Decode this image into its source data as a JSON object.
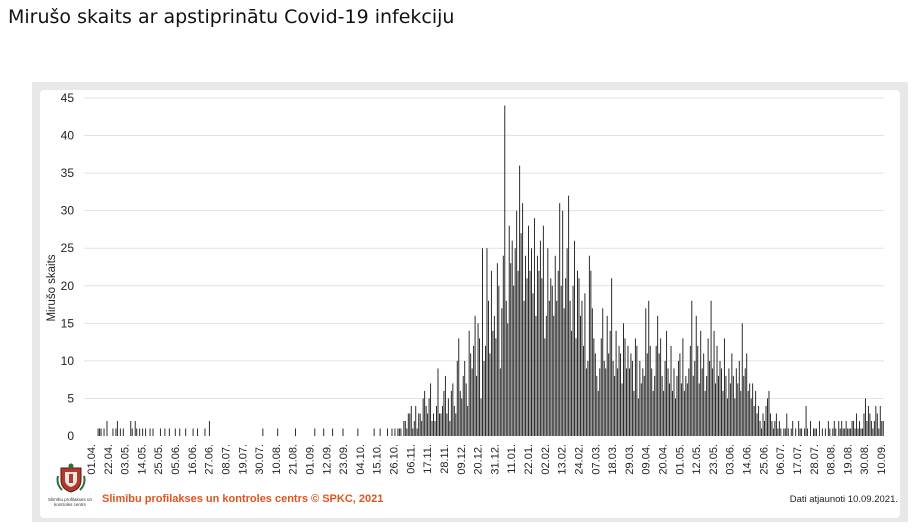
{
  "page": {
    "title": "Mirušo skaits ar apstiprinātu Covid-19 infekciju",
    "credit": "Slimību profilakses un kontroles centrs © SPKC, 2021",
    "updated": "Dati atjaunoti 10.09.2021.",
    "logo_caption": "Slimību profilakses un kontroles centrs"
  },
  "chart_data": {
    "type": "bar",
    "title": "Mirušo skaits ar apstiprinātu Covid-19 infekciju",
    "xlabel": "",
    "ylabel": "Mirušo skaits",
    "ylim": [
      0,
      45
    ],
    "yticks": [
      0,
      5,
      10,
      15,
      20,
      25,
      30,
      35,
      40,
      45
    ],
    "grid": true,
    "bar_color": "#222222",
    "x_start": "2020-03-22",
    "x_end": "2021-09-10",
    "x_tick_labels": [
      "01.04.",
      "22.04.",
      "03.05.",
      "14.05.",
      "25.05.",
      "05.06.",
      "16.06.",
      "27.06.",
      "08.07.",
      "19.07.",
      "30.07.",
      "10.08.",
      "21.08.",
      "01.09.",
      "12.09.",
      "23.09.",
      "04.10.",
      "15.10.",
      "26.10.",
      "06.11.",
      "17.11.",
      "28.11.",
      "09.12.",
      "20.12.",
      "31.12.",
      "11.01.",
      "22.01.",
      "02.02.",
      "13.02.",
      "24.02.",
      "07.03.",
      "18.03.",
      "29.03.",
      "09.04.",
      "20.04.",
      "01.05.",
      "12.05.",
      "23.05.",
      "03.06.",
      "14.06.",
      "25.06.",
      "06.07.",
      "17.07.",
      "28.07.",
      "08.08.",
      "19.08.",
      "30.08.",
      "10.09."
    ],
    "monthly_values": [
      {
        "month": "2020-03",
        "values": [
          0,
          0,
          0,
          0,
          0,
          0,
          0,
          0,
          0,
          1
        ]
      },
      {
        "month": "2020-04",
        "values": [
          1,
          1,
          0,
          1,
          0,
          2,
          0,
          0,
          0,
          1,
          0,
          1,
          2,
          0,
          1,
          0,
          1,
          0,
          0,
          0,
          0,
          2,
          1,
          0,
          2,
          1,
          0,
          1,
          0,
          1
        ]
      },
      {
        "month": "2020-05",
        "values": [
          0,
          1,
          0,
          0,
          1,
          0,
          1,
          0,
          0,
          0,
          0,
          1,
          0,
          0,
          1,
          0,
          0,
          1,
          0,
          0,
          0,
          1,
          0,
          0,
          1,
          0,
          0,
          0,
          1,
          0,
          0
        ]
      },
      {
        "month": "2020-06",
        "values": [
          0,
          0,
          1,
          0,
          0,
          1,
          0,
          0,
          0,
          0,
          1,
          0,
          0,
          2,
          0,
          0,
          0,
          0,
          0,
          0,
          0,
          0,
          0,
          0,
          0,
          0,
          0,
          0,
          0,
          0
        ]
      },
      {
        "month": "2020-07",
        "values": [
          0,
          0,
          0,
          0,
          0,
          0,
          0,
          0,
          0,
          0,
          0,
          0,
          0,
          0,
          0,
          0,
          0,
          0,
          0,
          1,
          0,
          0,
          0,
          0,
          0,
          0,
          0,
          0,
          0,
          1,
          0
        ]
      },
      {
        "month": "2020-08",
        "values": [
          0,
          0,
          0,
          0,
          0,
          0,
          0,
          0,
          0,
          0,
          1,
          0,
          0,
          0,
          0,
          0,
          0,
          0,
          0,
          0,
          0,
          0,
          0,
          1,
          0,
          0,
          0,
          0,
          0,
          1,
          0
        ]
      },
      {
        "month": "2020-09",
        "values": [
          0,
          0,
          0,
          0,
          1,
          0,
          0,
          0,
          0,
          0,
          0,
          1,
          0,
          0,
          0,
          0,
          0,
          0,
          0,
          0,
          0,
          1,
          0,
          0,
          0,
          0,
          0,
          0,
          0,
          0
        ]
      },
      {
        "month": "2020-10",
        "values": [
          0,
          0,
          1,
          0,
          0,
          0,
          1,
          0,
          0,
          0,
          0,
          1,
          0,
          0,
          1,
          0,
          1,
          0,
          1,
          1,
          1,
          0,
          2,
          2,
          1,
          3,
          3,
          4,
          1,
          2,
          4
        ]
      },
      {
        "month": "2020-11",
        "values": [
          1,
          3,
          3,
          2,
          5,
          6,
          4,
          3,
          5,
          7,
          2,
          3,
          2,
          4,
          9,
          3,
          3,
          4,
          6,
          8,
          3,
          5,
          2,
          6,
          7,
          4,
          3,
          10,
          13,
          6
        ]
      },
      {
        "month": "2020-12",
        "values": [
          5,
          8,
          10,
          7,
          4,
          14,
          11,
          9,
          12,
          16,
          8,
          15,
          13,
          5,
          25,
          10,
          12,
          25,
          18,
          11,
          22,
          14,
          16,
          13,
          23,
          20,
          9,
          17,
          24,
          44,
          18
        ]
      },
      {
        "month": "2021-01",
        "values": [
          15,
          28,
          23,
          26,
          20,
          25,
          30,
          22,
          36,
          27,
          31,
          18,
          24,
          21,
          28,
          22,
          25,
          19,
          29,
          16,
          24,
          22,
          26,
          21,
          28,
          13,
          16,
          25,
          18,
          21,
          20
        ]
      },
      {
        "month": "2021-02",
        "values": [
          16,
          24,
          18,
          22,
          31,
          20,
          30,
          17,
          21,
          25,
          32,
          18,
          14,
          20,
          26,
          13,
          22,
          21,
          16,
          18,
          12,
          19,
          9,
          10,
          24,
          22,
          17,
          13,
          11
        ]
      },
      {
        "month": "2021-03",
        "values": [
          8,
          6,
          9,
          13,
          17,
          10,
          9,
          16,
          11,
          14,
          21,
          10,
          8,
          14,
          9,
          12,
          11,
          7,
          15,
          13,
          9,
          12,
          9,
          11,
          10,
          6,
          13,
          12,
          5,
          10,
          7
        ]
      },
      {
        "month": "2021-04",
        "values": [
          9,
          8,
          17,
          11,
          18,
          12,
          9,
          6,
          8,
          12,
          16,
          11,
          13,
          8,
          6,
          10,
          14,
          9,
          7,
          12,
          6,
          9,
          5,
          8,
          10,
          11,
          7,
          13,
          6,
          8
        ]
      },
      {
        "month": "2021-05",
        "values": [
          7,
          9,
          12,
          18,
          8,
          10,
          16,
          12,
          7,
          14,
          9,
          11,
          6,
          8,
          13,
          10,
          18,
          9,
          14,
          7,
          12,
          8,
          10,
          9,
          6,
          13,
          8,
          5,
          9,
          7,
          11
        ]
      },
      {
        "month": "2021-06",
        "values": [
          8,
          5,
          9,
          7,
          10,
          6,
          15,
          8,
          9,
          11,
          6,
          7,
          5,
          7,
          4,
          6,
          3,
          4,
          2,
          1,
          3,
          2,
          4,
          5,
          6,
          3,
          2,
          1,
          2,
          3
        ]
      },
      {
        "month": "2021-07",
        "values": [
          1,
          2,
          1,
          0,
          1,
          1,
          3,
          1,
          0,
          1,
          2,
          0,
          1,
          0,
          2,
          1,
          1,
          0,
          1,
          4,
          1,
          0,
          2,
          0,
          1,
          1,
          1,
          0,
          2,
          0,
          1
        ]
      },
      {
        "month": "2021-08",
        "values": [
          0,
          1,
          0,
          2,
          1,
          0,
          1,
          2,
          1,
          0,
          2,
          1,
          2,
          1,
          1,
          2,
          1,
          1,
          1,
          2,
          2,
          1,
          3,
          1,
          2,
          1,
          1,
          3,
          5,
          2,
          4
        ]
      },
      {
        "month": "2021-09",
        "values": [
          3,
          2,
          1,
          2,
          4,
          3,
          1,
          4,
          2,
          2
        ]
      }
    ]
  }
}
